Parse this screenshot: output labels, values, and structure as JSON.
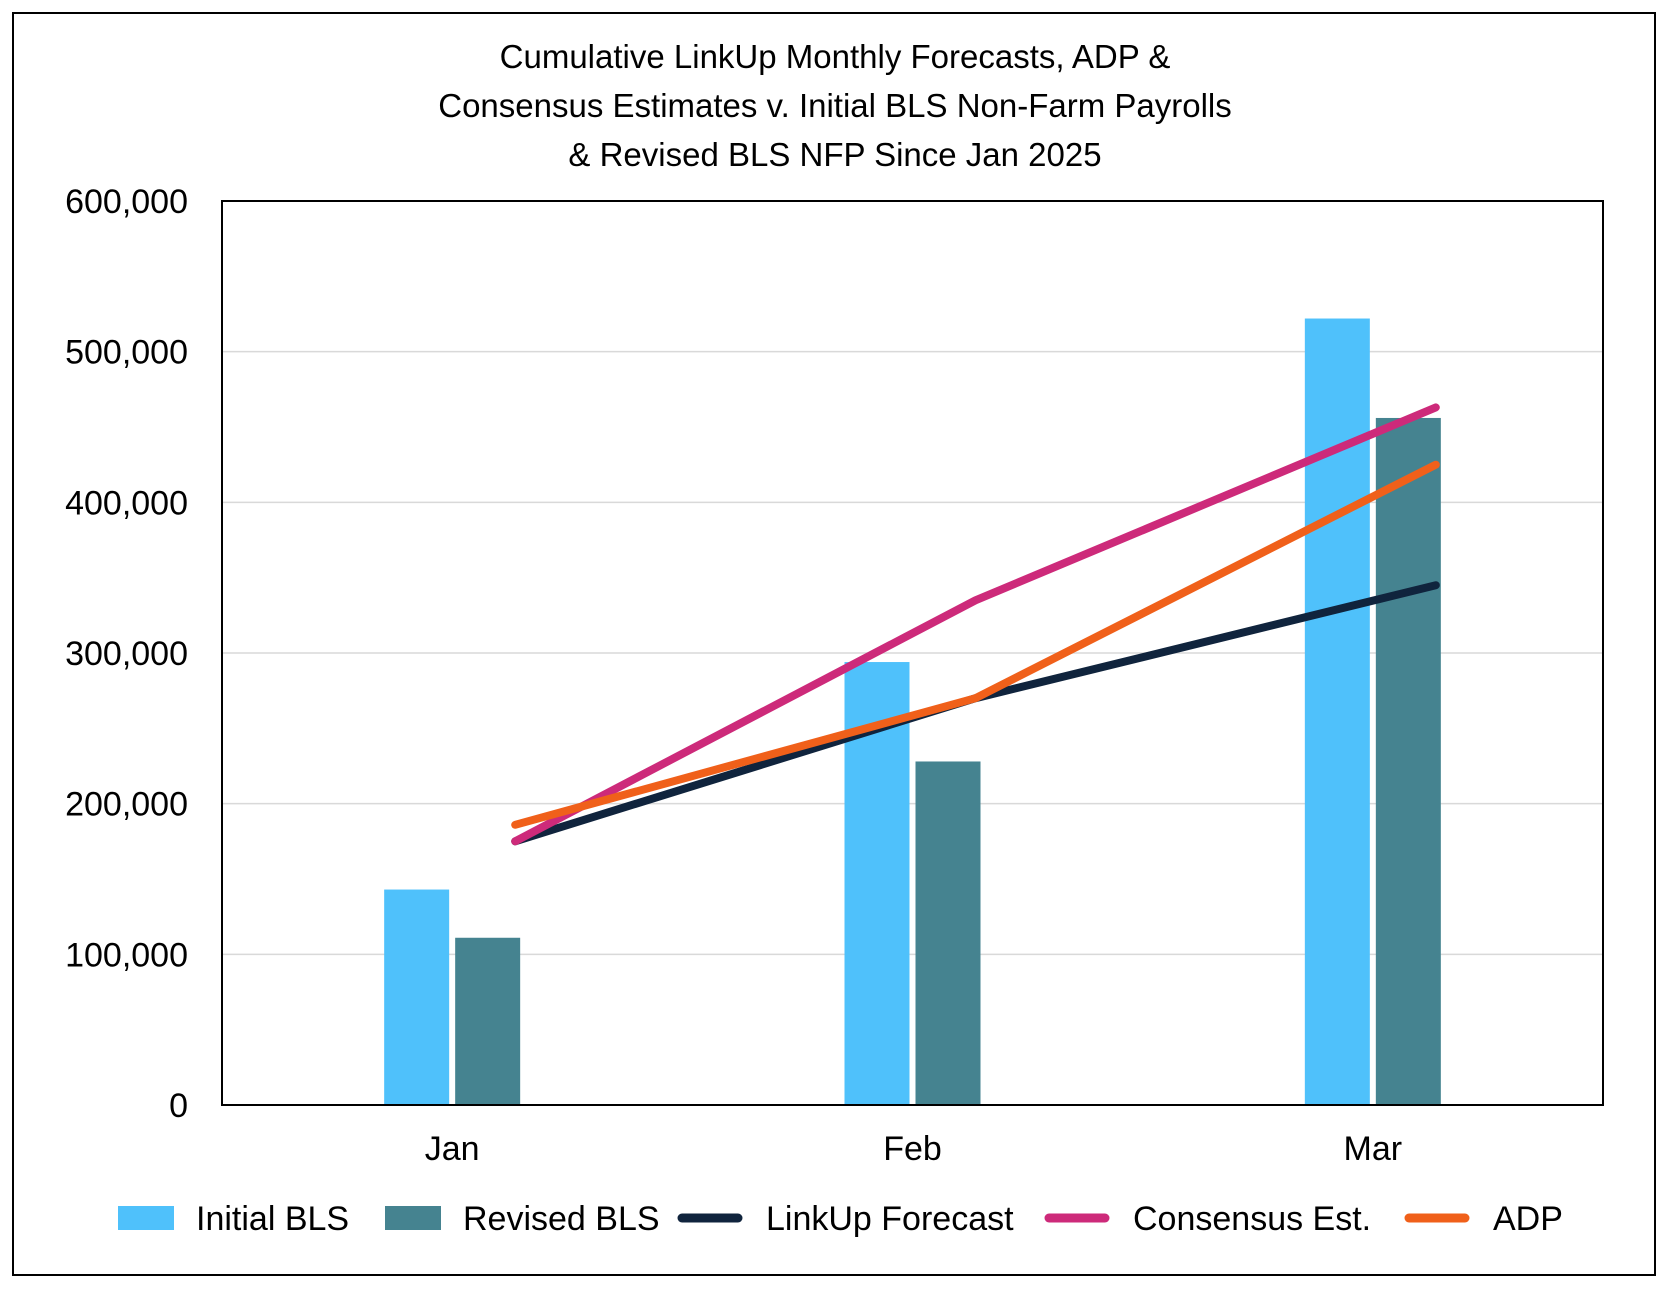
{
  "chart_data": {
    "type": "bar",
    "title": [
      "Cumulative LinkUp Monthly Forecasts, ADP &",
      "Consensus Estimates v. Initial BLS Non-Farm Payrolls",
      "& Revised BLS NFP Since Jan 2025"
    ],
    "categories": [
      "Jan",
      "Feb",
      "Mar"
    ],
    "ylim": [
      0,
      600000
    ],
    "yticks": [
      0,
      100000,
      200000,
      300000,
      400000,
      500000,
      600000
    ],
    "ytick_labels": [
      "0",
      "100,000",
      "200,000",
      "300,000",
      "400,000",
      "500,000",
      "600,000"
    ],
    "grid": true,
    "legend_position": "bottom",
    "bar_series": [
      {
        "name": "Initial BLS",
        "color": "#4fc1fb",
        "values": [
          143000,
          294000,
          522000
        ]
      },
      {
        "name": "Revised BLS",
        "color": "#458390",
        "values": [
          111000,
          228000,
          456000
        ]
      }
    ],
    "line_series": [
      {
        "name": "LinkUp Forecast",
        "color": "#10243d",
        "values": [
          175000,
          270000,
          345000
        ]
      },
      {
        "name": "Consensus Est.",
        "color": "#cd2a7a",
        "values": [
          175000,
          335000,
          463000
        ]
      },
      {
        "name": "ADP",
        "color": "#f0601a",
        "values": [
          186000,
          270000,
          425000
        ]
      }
    ]
  }
}
